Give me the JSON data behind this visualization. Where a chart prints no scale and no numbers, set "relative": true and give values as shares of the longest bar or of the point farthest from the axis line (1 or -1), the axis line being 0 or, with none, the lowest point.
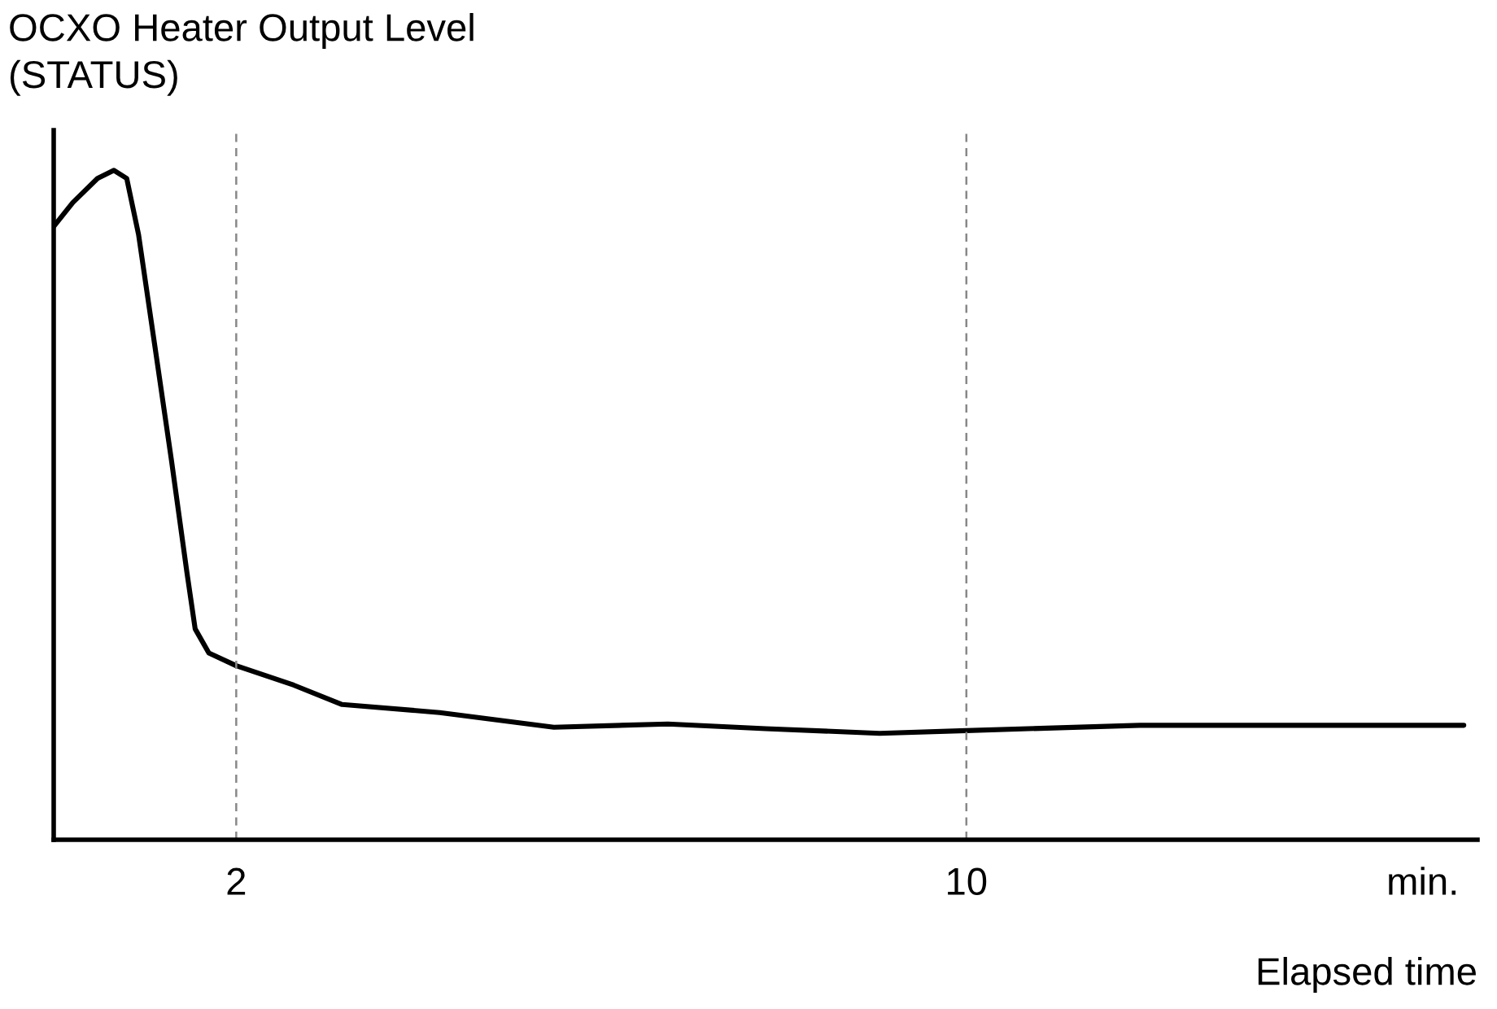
{
  "chart_data": {
    "type": "line",
    "relative": true,
    "ylabel": "OCXO Heater Output Level\n(STATUS)",
    "xlabel": "Elapsed time",
    "x": [
      0,
      0.21,
      0.48,
      0.66,
      0.8,
      0.93,
      1.11,
      1.29,
      1.46,
      1.55,
      1.7,
      2.0,
      2.63,
      3.16,
      4.23,
      5.48,
      6.73,
      7.8,
      9.05,
      10,
      11.9,
      13.7,
      15.45
    ],
    "series": [
      {
        "color": "#000000",
        "values": [
          0.916,
          0.952,
          0.988,
          1.0,
          0.988,
          0.904,
          0.736,
          0.567,
          0.399,
          0.315,
          0.279,
          0.26,
          0.231,
          0.202,
          0.19,
          0.168,
          0.173,
          0.166,
          0.159,
          0.163,
          0.171,
          0.171,
          0.171
        ]
      }
    ],
    "xlim": [
      0,
      15.6
    ],
    "xticks": [
      2,
      10,
      {
        "value": 15,
        "label": "min."
      }
    ],
    "ref_lines": [
      {
        "axis": "x",
        "value": 2,
        "color": "#888888",
        "line_style": "dashed"
      },
      {
        "axis": "x",
        "value": 10,
        "color": "#888888",
        "line_style": "dashed"
      }
    ],
    "grid": false,
    "marker": "none",
    "line_style": "solid"
  }
}
